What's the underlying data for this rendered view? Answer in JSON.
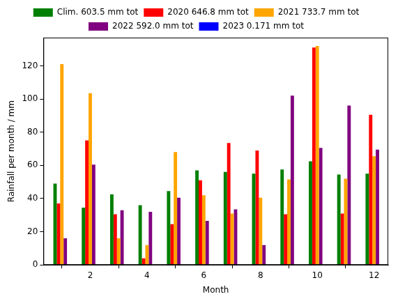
{
  "chart_data": {
    "type": "bar",
    "x_label": "Month",
    "y_label": "Rainfall per month / mm",
    "x": [
      1,
      2,
      3,
      4,
      5,
      6,
      7,
      8,
      9,
      10,
      11,
      12
    ],
    "series": [
      {
        "name": "Clim. 603.5 mm tot",
        "color": "#008000",
        "values": [
          49,
          34.5,
          42.5,
          36,
          44.5,
          57,
          56,
          55,
          57.5,
          62.5,
          54.5,
          55
        ]
      },
      {
        "name": "2020 646.8 mm tot",
        "color": "#ff0000",
        "values": [
          37,
          75,
          30.5,
          4,
          24.5,
          51,
          73.5,
          69,
          30.5,
          131,
          31,
          90.5
        ]
      },
      {
        "name": "2021 733.7 mm tot",
        "color": "#ffa500",
        "values": [
          121,
          103.5,
          16,
          12,
          68,
          42,
          31,
          40.5,
          51.5,
          132,
          52,
          65.5
        ]
      },
      {
        "name": "2022 592.0 mm tot",
        "color": "#800080",
        "values": [
          16,
          60.5,
          33,
          32,
          40.5,
          26.5,
          33.5,
          12,
          102,
          70.5,
          96,
          69.5
        ]
      },
      {
        "name": "2023 0.171 mm tot",
        "color": "#0000ff",
        "values": [
          0.171,
          null,
          null,
          null,
          null,
          null,
          null,
          null,
          null,
          null,
          null,
          null
        ]
      }
    ],
    "xlim": [
      0.35,
      12.5
    ],
    "xticks": [
      2,
      4,
      6,
      8,
      10,
      12
    ],
    "ylim": [
      0,
      137
    ],
    "yticks": [
      0,
      20,
      40,
      60,
      80,
      100,
      120
    ],
    "grid": false,
    "legend": "top"
  }
}
